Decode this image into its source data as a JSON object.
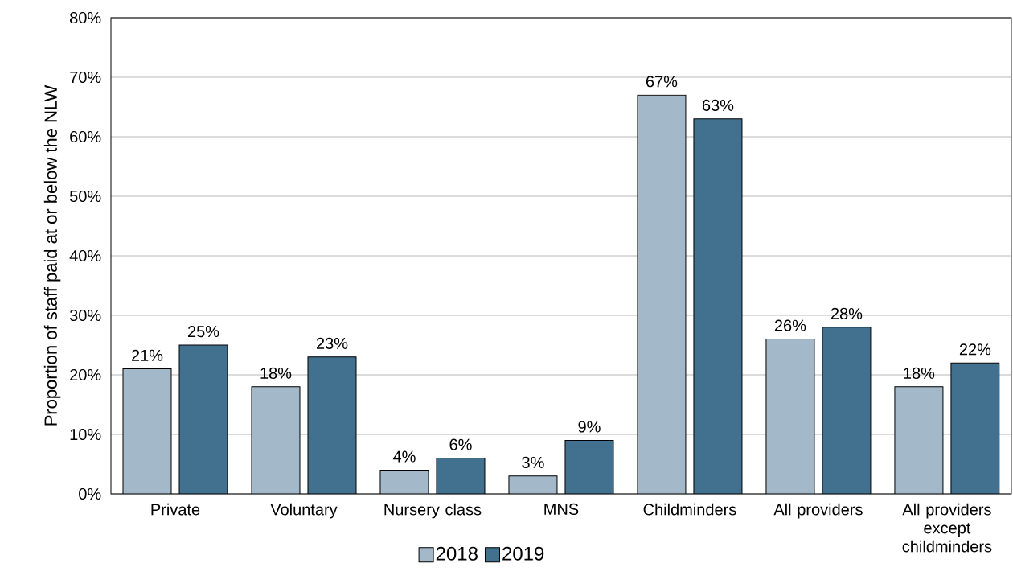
{
  "chart_data": {
    "type": "bar",
    "ylabel": "Proportion of staff paid at or below the NLW",
    "categories": [
      "Private",
      "Voluntary",
      "Nursery class",
      "MNS",
      "Childminders",
      "All providers",
      "All providers except childminders"
    ],
    "series": [
      {
        "name": "2018",
        "color": "#a3b8c8",
        "values": [
          21,
          18,
          4,
          3,
          67,
          26,
          18
        ],
        "value_labels": [
          "21%",
          "18%",
          "4%",
          "3%",
          "67%",
          "26%",
          "18%"
        ]
      },
      {
        "name": "2019",
        "color": "#41718f",
        "values": [
          25,
          23,
          6,
          9,
          63,
          28,
          22
        ],
        "value_labels": [
          "25%",
          "23%",
          "6%",
          "9%",
          "63%",
          "28%",
          "22%"
        ]
      }
    ],
    "ylim": [
      0,
      80
    ],
    "yticks": [
      {
        "value": 0,
        "label": "0%"
      },
      {
        "value": 10,
        "label": "10%"
      },
      {
        "value": 20,
        "label": "20%"
      },
      {
        "value": 30,
        "label": "30%"
      },
      {
        "value": 40,
        "label": "40%"
      },
      {
        "value": 50,
        "label": "50%"
      },
      {
        "value": 60,
        "label": "60%"
      },
      {
        "value": 70,
        "label": "70%"
      },
      {
        "value": 80,
        "label": "80%"
      }
    ],
    "grid": "y",
    "legend": "bottom"
  }
}
